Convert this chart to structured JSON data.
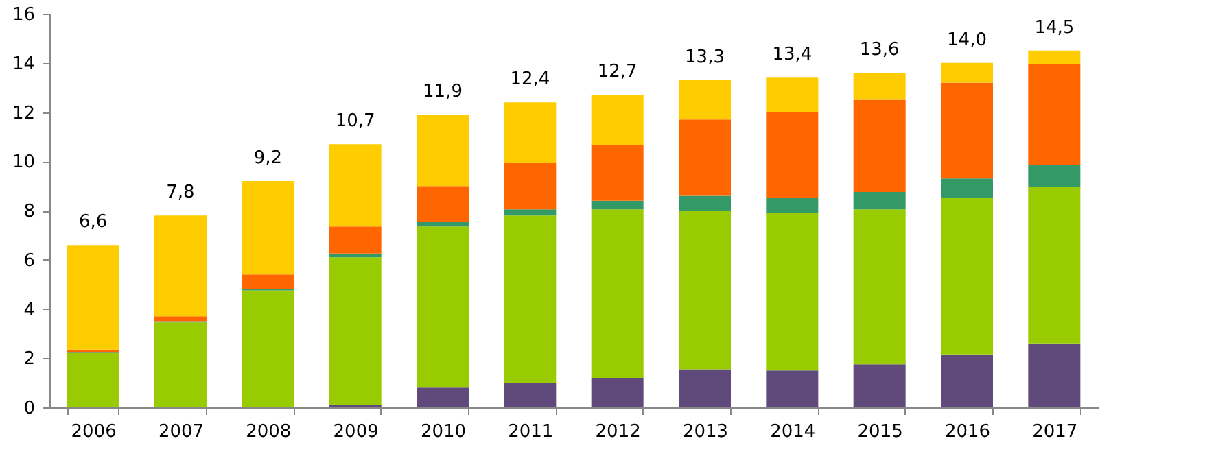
{
  "chart_data": {
    "type": "bar",
    "stacked": true,
    "categories": [
      "2006",
      "2007",
      "2008",
      "2009",
      "2010",
      "2011",
      "2012",
      "2013",
      "2014",
      "2015",
      "2016",
      "2017"
    ],
    "series": [
      {
        "color": "#604a7b",
        "values": [
          0,
          0,
          0,
          0.1,
          0.8,
          1.0,
          1.2,
          1.55,
          1.5,
          1.75,
          2.15,
          2.6
        ]
      },
      {
        "color": "#99cc00",
        "values": [
          2.2,
          3.45,
          4.75,
          6.0,
          6.55,
          6.8,
          6.85,
          6.45,
          6.4,
          6.3,
          6.35,
          6.35
        ]
      },
      {
        "color": "#339966",
        "values": [
          0.05,
          0.05,
          0.05,
          0.15,
          0.2,
          0.25,
          0.35,
          0.6,
          0.6,
          0.7,
          0.8,
          0.9
        ]
      },
      {
        "color": "#ff6600",
        "values": [
          0.1,
          0.2,
          0.6,
          1.1,
          1.45,
          1.9,
          2.25,
          3.1,
          3.5,
          3.75,
          3.9,
          4.1
        ]
      },
      {
        "color": "#ffcc00",
        "values": [
          4.25,
          4.1,
          3.8,
          3.35,
          2.9,
          2.45,
          2.05,
          1.6,
          1.4,
          1.1,
          0.8,
          0.55
        ]
      }
    ],
    "totals": [
      "6,6",
      "7,8",
      "9,2",
      "10,7",
      "11,9",
      "12,4",
      "12,7",
      "13,3",
      "13,4",
      "13,6",
      "14,0",
      "14,5"
    ],
    "ylim": [
      0,
      16
    ],
    "yticks": [
      0,
      2,
      4,
      6,
      8,
      10,
      12,
      14,
      16
    ],
    "grid": false,
    "legend": false
  }
}
